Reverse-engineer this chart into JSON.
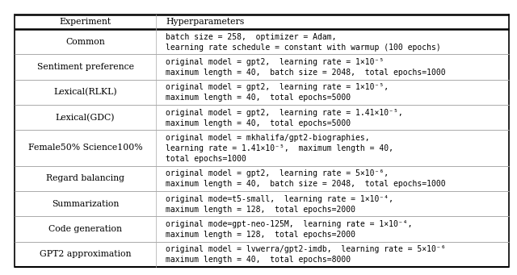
{
  "col_headers": [
    "Experiment",
    "Hyperparameters"
  ],
  "rows": [
    {
      "experiment": "Common",
      "lines": [
        "batch size = 258,  optimizer = Adam,",
        "learning rate schedule = constant with warmup (100 epochs)"
      ]
    },
    {
      "experiment": "Sentiment preference",
      "lines": [
        "original model = gpt2,  learning rate = 1×10⁻⁵",
        "maximum length = 40,  batch size = 2048,  total epochs=1000"
      ]
    },
    {
      "experiment": "Lexical(RLKL)",
      "lines": [
        "original model = gpt2,  learning rate = 1×10⁻⁵,",
        "maximum length = 40,  total epochs=5000"
      ]
    },
    {
      "experiment": "Lexical(GDC)",
      "lines": [
        "original model = gpt2,  learning rate = 1.41×10⁻⁵,",
        "maximum length = 40,  total epochs=5000"
      ]
    },
    {
      "experiment": "Female50% Science100%",
      "lines": [
        "original model = mkhalifa/gpt2-biographies,",
        "learning rate = 1.41×10⁻⁵,  maximum length = 40,",
        "total epochs=1000"
      ]
    },
    {
      "experiment": "Regard balancing",
      "lines": [
        "original model = gpt2,  learning rate = 5×10⁻⁶,",
        "maximum length = 40,  batch size = 2048,  total epochs=1000"
      ]
    },
    {
      "experiment": "Summarization",
      "lines": [
        "original mode=t5-small,  learning rate = 1×10⁻⁴,",
        "maximum length = 128,  total epochs=2000"
      ]
    },
    {
      "experiment": "Code generation",
      "lines": [
        "original mode=gpt-neo-125M,  learning rate = 1×10⁻⁴,",
        "maximum length = 128,  total epochs=2000"
      ]
    },
    {
      "experiment": "GPT2 approximation",
      "lines": [
        "original model = lvwerra/gpt2-imdb,  learning rate = 5×10⁻⁶",
        "maximum length = 40,  total epochs=8000"
      ]
    }
  ],
  "bg": "#ffffff",
  "text_color": "#000000",
  "line_color_heavy": "#000000",
  "line_color_light": "#aaaaaa",
  "serif_font": "DejaVu Serif",
  "mono_font": "DejaVu Sans Mono",
  "serif_size": 7.8,
  "mono_size": 7.0,
  "fig_w": 6.4,
  "fig_h": 3.41,
  "dpi": 100
}
